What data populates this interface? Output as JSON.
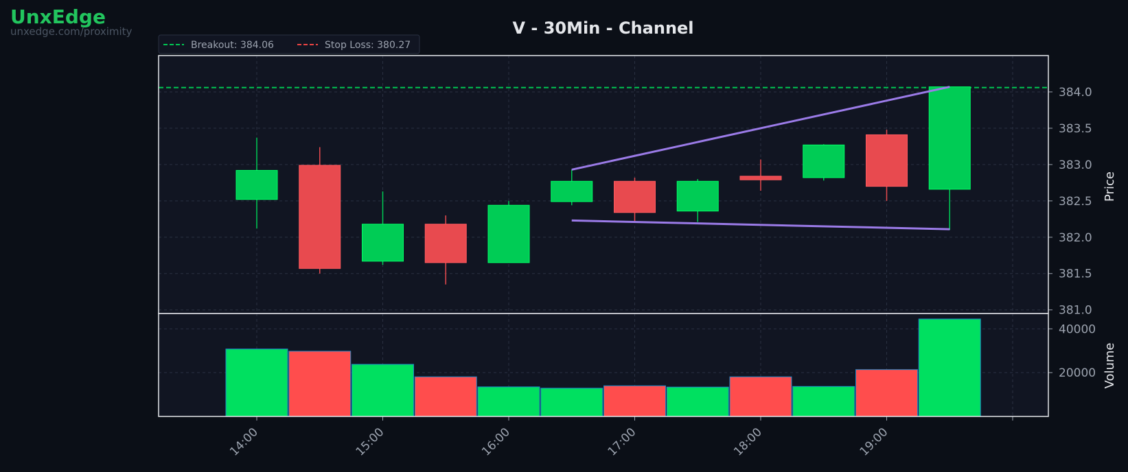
{
  "brand": {
    "name": "UnxEdge",
    "url": "unxedge.com/proximity"
  },
  "chart_data": {
    "type": "candlestick",
    "title": "V - 30Min - Channel",
    "ylabel_price": "Price",
    "ylabel_volume": "Volume",
    "x_ticks": [
      "14:00",
      "15:00",
      "16:00",
      "17:00",
      "18:00",
      "19:00"
    ],
    "price_ylim": [
      380.95,
      384.5
    ],
    "price_ticks": [
      "381.0",
      "381.5",
      "382.0",
      "382.5",
      "383.0",
      "383.5",
      "384.0"
    ],
    "volume_ylim": [
      0,
      47000
    ],
    "volume_ticks": [
      "20000",
      "40000"
    ],
    "legend": [
      {
        "label": "Breakout: 384.06",
        "color": "#00c853",
        "style": "dashed"
      },
      {
        "label": "Stop Loss: 380.27",
        "color": "#ef4444",
        "style": "dashed"
      }
    ],
    "breakout_level": 384.06,
    "stop_loss_level": 380.27,
    "candles": [
      {
        "time": "14:00",
        "open": 382.52,
        "high": 383.37,
        "low": 382.12,
        "close": 382.92,
        "volume": 30800
      },
      {
        "time": "14:30",
        "open": 382.99,
        "high": 383.24,
        "low": 381.5,
        "close": 381.57,
        "volume": 29800
      },
      {
        "time": "15:00",
        "open": 381.67,
        "high": 382.63,
        "low": 381.62,
        "close": 382.18,
        "volume": 23800
      },
      {
        "time": "15:30",
        "open": 382.18,
        "high": 382.3,
        "low": 381.35,
        "close": 381.65,
        "volume": 18100
      },
      {
        "time": "16:00",
        "open": 381.65,
        "high": 382.5,
        "low": 381.65,
        "close": 382.44,
        "volume": 13500
      },
      {
        "time": "16:30",
        "open": 382.49,
        "high": 382.93,
        "low": 382.44,
        "close": 382.77,
        "volume": 12900
      },
      {
        "time": "17:00",
        "open": 382.77,
        "high": 382.82,
        "low": 382.22,
        "close": 382.34,
        "volume": 14000
      },
      {
        "time": "17:30",
        "open": 382.36,
        "high": 382.8,
        "low": 382.21,
        "close": 382.77,
        "volume": 13400
      },
      {
        "time": "18:00",
        "open": 382.84,
        "high": 383.07,
        "low": 382.64,
        "close": 382.79,
        "volume": 18100
      },
      {
        "time": "18:30",
        "open": 382.82,
        "high": 383.28,
        "low": 382.78,
        "close": 383.27,
        "volume": 13700
      },
      {
        "time": "19:00",
        "open": 383.41,
        "high": 383.48,
        "low": 382.5,
        "close": 382.7,
        "volume": 21400
      },
      {
        "time": "19:30",
        "open": 382.66,
        "high": 384.07,
        "low": 382.1,
        "close": 384.07,
        "volume": 44500
      }
    ],
    "channel_lines": [
      {
        "from": {
          "time": "16:30",
          "price": 382.93
        },
        "to": {
          "time": "19:30",
          "price": 384.07
        },
        "color": "#9b7be8"
      },
      {
        "from": {
          "time": "16:30",
          "price": 382.23
        },
        "to": {
          "time": "19:30",
          "price": 382.11
        },
        "color": "#9b7be8"
      }
    ],
    "colors": {
      "up": "#00cc55",
      "down": "#e84a4f",
      "vol_up": "#00e060",
      "vol_down": "#ff4d4d",
      "grid": "#2a3142",
      "axis": "#e5e7eb",
      "tick": "#9ca3af"
    },
    "grid": true,
    "legend_position": "top-left"
  }
}
